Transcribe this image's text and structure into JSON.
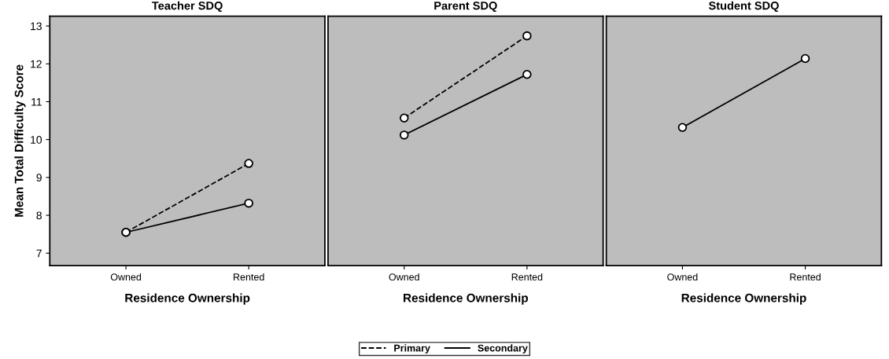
{
  "chart_data": [
    {
      "type": "line",
      "title": "Teacher SDQ",
      "xlabel": "Residence Ownership",
      "ylabel": "Mean Total Difficulty Score",
      "categories": [
        "Owned",
        "Rented"
      ],
      "ylim": [
        6.67,
        13.26
      ],
      "yticks": [
        7,
        8,
        9,
        10,
        11,
        12,
        13
      ],
      "marker": "circle",
      "grid": false,
      "legend": "bottom",
      "series": [
        {
          "name": "Primary",
          "color": "#000000",
          "line_style": "dashed",
          "values": [
            7.55,
            9.37
          ]
        },
        {
          "name": "Secondary",
          "color": "#000000",
          "line_style": "solid",
          "values": [
            7.55,
            8.32
          ]
        }
      ]
    },
    {
      "type": "line",
      "title": "Parent SDQ",
      "xlabel": "Residence Ownership",
      "categories": [
        "Owned",
        "Rented"
      ],
      "ylim": [
        6.67,
        13.26
      ],
      "yticks": [
        7,
        8,
        9,
        10,
        11,
        12,
        13
      ],
      "tick_labels": "x",
      "marker": "circle",
      "grid": false,
      "series": [
        {
          "name": "Primary",
          "color": "#000000",
          "line_style": "dashed",
          "values": [
            10.57,
            12.74
          ]
        },
        {
          "name": "Secondary",
          "color": "#000000",
          "line_style": "solid",
          "values": [
            10.12,
            11.72
          ]
        }
      ]
    },
    {
      "type": "line",
      "title": "Student SDQ",
      "xlabel": "Residence Ownership",
      "categories": [
        "Owned",
        "Rented"
      ],
      "ylim": [
        6.67,
        13.26
      ],
      "yticks": [
        7,
        8,
        9,
        10,
        11,
        12,
        13
      ],
      "tick_labels": "x",
      "marker": "circle",
      "grid": false,
      "series": [
        {
          "name": "Secondary",
          "color": "#000000",
          "line_style": "solid",
          "values": [
            10.32,
            12.14
          ]
        }
      ]
    }
  ]
}
